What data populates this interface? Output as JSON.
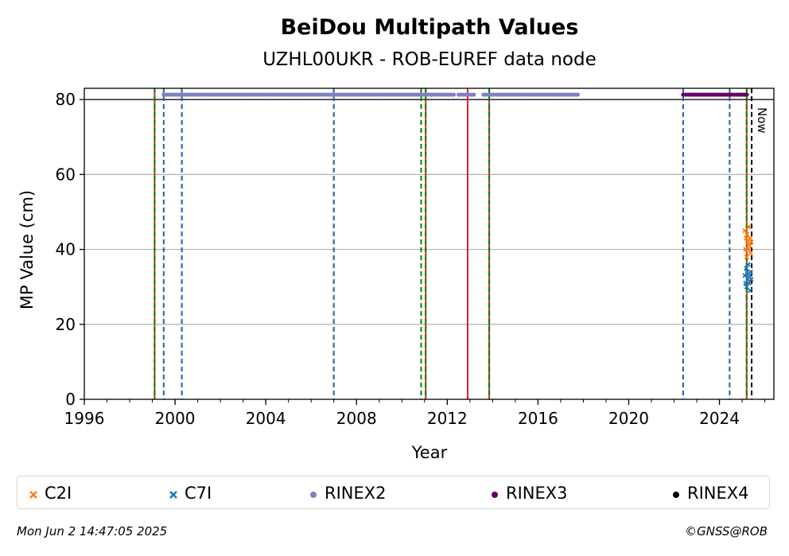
{
  "chart_data": {
    "type": "scatter",
    "title": "BeiDou Multipath Values",
    "subtitle": "UZHL00UKR - ROB-EUREF data node",
    "xlabel": "Year",
    "ylabel": "MP Value (cm)",
    "xlim": [
      1996.0,
      2026.4
    ],
    "ylim": [
      0,
      83
    ],
    "x_ticks": [
      1996,
      2000,
      2004,
      2008,
      2012,
      2016,
      2020,
      2024
    ],
    "x_tick_labels": [
      "1996",
      "2000",
      "2004",
      "2008",
      "2012",
      "2016",
      "2020",
      "2024"
    ],
    "y_ticks": [
      0,
      20,
      40,
      60,
      80
    ],
    "y_tick_labels": [
      "0",
      "20",
      "40",
      "60",
      "80"
    ],
    "grid": "horizontal",
    "legend_position": "bottom",
    "now_label": "Now",
    "now_x": 2025.42,
    "reference_line_y": 80,
    "series": [
      {
        "name": "C2I",
        "marker": "x",
        "color": "#ff7f0e",
        "x": [
          2025.12,
          2025.15,
          2025.18,
          2025.2,
          2025.22,
          2025.25,
          2025.27,
          2025.3,
          2025.32,
          2025.35,
          2025.37,
          2025.4
        ],
        "y": [
          45,
          40,
          43,
          38,
          44,
          42,
          40,
          46,
          41,
          43,
          39,
          42
        ]
      },
      {
        "name": "C7I",
        "marker": "x",
        "color": "#1f77b4",
        "x": [
          2025.12,
          2025.15,
          2025.18,
          2025.2,
          2025.22,
          2025.25,
          2025.27,
          2025.3,
          2025.32,
          2025.35,
          2025.37,
          2025.4
        ],
        "y": [
          33,
          31,
          35,
          30,
          34,
          32,
          36,
          31,
          33,
          29,
          34,
          32
        ]
      },
      {
        "name": "RINEX2",
        "marker": "o",
        "color": "#8080c0",
        "y_value": 81.3,
        "segments": [
          [
            1999.5,
            2012.3
          ],
          [
            2012.5,
            2013.2
          ],
          [
            2013.6,
            2017.8
          ]
        ]
      },
      {
        "name": "RINEX3",
        "marker": "o",
        "color": "#660066",
        "y_value": 81.3,
        "segments": [
          [
            2022.4,
            2025.3
          ]
        ]
      },
      {
        "name": "RINEX4",
        "marker": "o",
        "color": "#000000",
        "y_value": 81.3,
        "segments": []
      }
    ],
    "vertical_lines": [
      {
        "x": 1999.1,
        "style": "solid",
        "color": "#d62728"
      },
      {
        "x": 1999.1,
        "style": "dashed",
        "color": "#008000"
      },
      {
        "x": 1999.5,
        "style": "dashed",
        "color": "#1f5fa8"
      },
      {
        "x": 2000.3,
        "style": "dashed",
        "color": "#1f5fa8"
      },
      {
        "x": 2007.0,
        "style": "dashed",
        "color": "#1f5fa8"
      },
      {
        "x": 2010.85,
        "style": "dashed",
        "color": "#008000"
      },
      {
        "x": 2011.05,
        "style": "solid",
        "color": "#d62728"
      },
      {
        "x": 2011.05,
        "style": "dashed",
        "color": "#008000"
      },
      {
        "x": 2012.9,
        "style": "solid",
        "color": "#d62728"
      },
      {
        "x": 2013.85,
        "style": "solid",
        "color": "#d62728"
      },
      {
        "x": 2013.85,
        "style": "dashed",
        "color": "#008000"
      },
      {
        "x": 2022.4,
        "style": "dashed",
        "color": "#1f5fa8"
      },
      {
        "x": 2024.45,
        "style": "dashed",
        "color": "#1f5fa8"
      },
      {
        "x": 2025.2,
        "style": "solid",
        "color": "#d62728"
      },
      {
        "x": 2025.2,
        "style": "dashed",
        "color": "#008000"
      },
      {
        "x": 2025.42,
        "style": "dashed",
        "color": "#000000"
      }
    ]
  },
  "footer": {
    "timestamp": "Mon Jun  2 14:47:05 2025",
    "copyright": "©GNSS@ROB"
  }
}
